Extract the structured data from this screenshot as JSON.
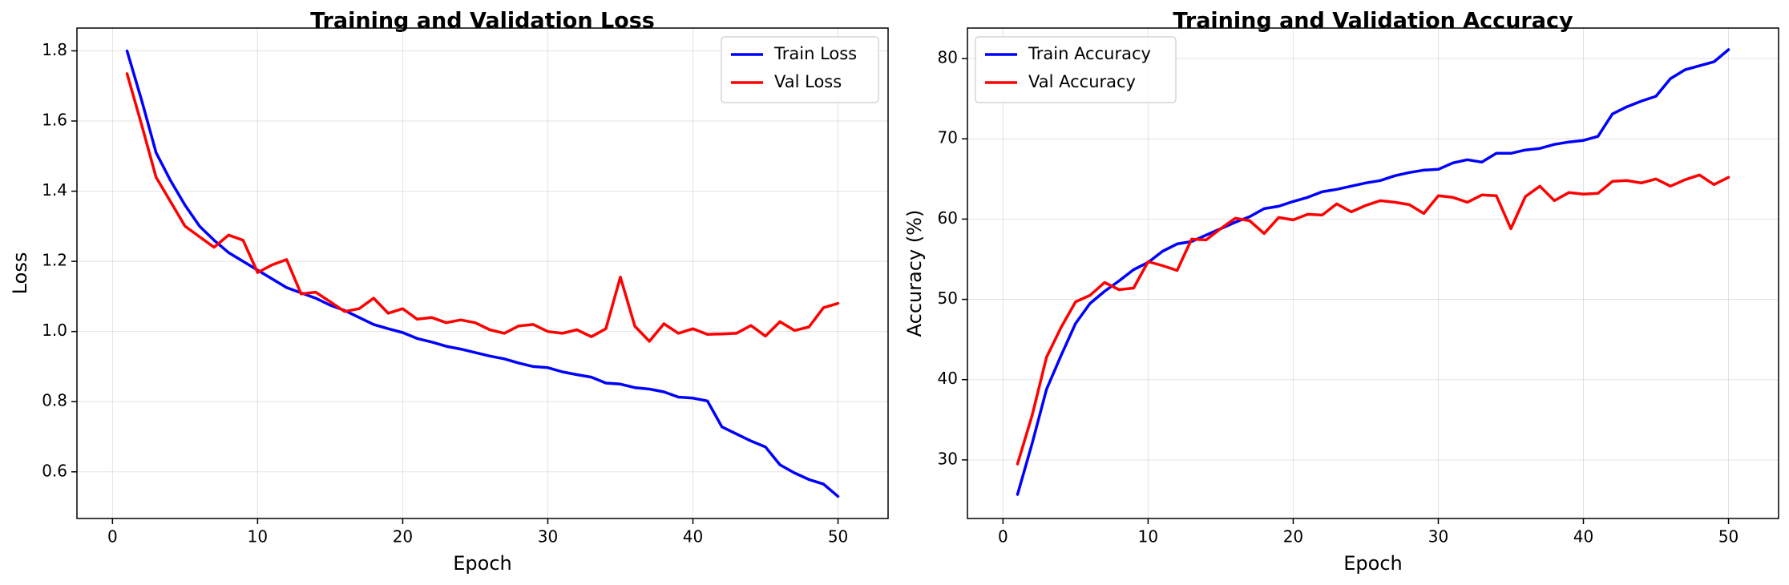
{
  "chart_data": [
    {
      "type": "line",
      "title": "Training and Validation Loss",
      "xlabel": "Epoch",
      "ylabel": "Loss",
      "xlim": [
        -2.45,
        53.45
      ],
      "ylim": [
        0.467,
        1.865
      ],
      "xticks": [
        0,
        10,
        20,
        30,
        40,
        50
      ],
      "yticks": [
        0.6,
        0.8,
        1.0,
        1.2,
        1.4,
        1.6,
        1.8
      ],
      "ytick_labels": [
        "0.6",
        "0.8",
        "1.0",
        "1.2",
        "1.4",
        "1.6",
        "1.8"
      ],
      "grid": true,
      "legend": "upper right",
      "x": [
        1,
        2,
        3,
        4,
        5,
        6,
        7,
        8,
        9,
        10,
        11,
        12,
        13,
        14,
        15,
        16,
        17,
        18,
        19,
        20,
        21,
        22,
        23,
        24,
        25,
        26,
        27,
        28,
        29,
        30,
        31,
        32,
        33,
        34,
        35,
        36,
        37,
        38,
        39,
        40,
        41,
        42,
        43,
        44,
        45,
        46,
        47,
        48,
        49,
        50
      ],
      "series": [
        {
          "name": "Train Loss",
          "color": "#0000ff",
          "values": [
            1.8,
            1.66,
            1.51,
            1.43,
            1.36,
            1.3,
            1.26,
            1.225,
            1.2,
            1.175,
            1.15,
            1.125,
            1.11,
            1.095,
            1.075,
            1.06,
            1.04,
            1.02,
            1.008,
            0.997,
            0.98,
            0.97,
            0.958,
            0.95,
            0.94,
            0.93,
            0.922,
            0.91,
            0.9,
            0.897,
            0.885,
            0.877,
            0.87,
            0.853,
            0.85,
            0.84,
            0.836,
            0.828,
            0.813,
            0.81,
            0.802,
            0.728,
            0.708,
            0.688,
            0.671,
            0.62,
            0.597,
            0.578,
            0.565,
            0.53
          ]
        },
        {
          "name": "Val Loss",
          "color": "#ff0000",
          "values": [
            1.735,
            1.59,
            1.44,
            1.37,
            1.3,
            1.27,
            1.24,
            1.275,
            1.26,
            1.168,
            1.19,
            1.205,
            1.107,
            1.112,
            1.085,
            1.057,
            1.065,
            1.095,
            1.052,
            1.065,
            1.035,
            1.04,
            1.025,
            1.033,
            1.025,
            1.005,
            0.995,
            1.016,
            1.02,
            1.0,
            0.995,
            1.005,
            0.985,
            1.008,
            1.155,
            1.015,
            0.972,
            1.022,
            0.995,
            1.008,
            0.992,
            0.993,
            0.995,
            1.017,
            0.987,
            1.028,
            1.003,
            1.013,
            1.068,
            1.08
          ]
        }
      ]
    },
    {
      "type": "line",
      "title": "Training and Validation Accuracy",
      "xlabel": "Epoch",
      "ylabel": "Accuracy (%)",
      "xlim": [
        -2.45,
        53.45
      ],
      "ylim": [
        22.7,
        83.8
      ],
      "xticks": [
        0,
        10,
        20,
        30,
        40,
        50
      ],
      "yticks": [
        30,
        40,
        50,
        60,
        70,
        80
      ],
      "ytick_labels": [
        "30",
        "40",
        "50",
        "60",
        "70",
        "80"
      ],
      "grid": true,
      "legend": "upper left",
      "x": [
        1,
        2,
        3,
        4,
        5,
        6,
        7,
        8,
        9,
        10,
        11,
        12,
        13,
        14,
        15,
        16,
        17,
        18,
        19,
        20,
        21,
        22,
        23,
        24,
        25,
        26,
        27,
        28,
        29,
        30,
        31,
        32,
        33,
        34,
        35,
        36,
        37,
        38,
        39,
        40,
        41,
        42,
        43,
        44,
        45,
        46,
        47,
        48,
        49,
        50
      ],
      "series": [
        {
          "name": "Train Accuracy",
          "color": "#0000ff",
          "values": [
            25.7,
            32.0,
            38.8,
            43.0,
            47.0,
            49.5,
            51.0,
            52.3,
            53.7,
            54.6,
            56.0,
            56.9,
            57.2,
            58.0,
            58.8,
            59.6,
            60.3,
            61.3,
            61.6,
            62.2,
            62.7,
            63.4,
            63.7,
            64.1,
            64.5,
            64.8,
            65.4,
            65.8,
            66.1,
            66.2,
            67.0,
            67.4,
            67.1,
            68.2,
            68.2,
            68.6,
            68.8,
            69.3,
            69.6,
            69.8,
            70.3,
            73.1,
            74.0,
            74.7,
            75.3,
            77.5,
            78.6,
            79.1,
            79.6,
            81.1
          ]
        },
        {
          "name": "Val Accuracy",
          "color": "#ff0000",
          "values": [
            29.5,
            35.5,
            42.8,
            46.5,
            49.7,
            50.5,
            52.1,
            51.2,
            51.4,
            54.7,
            54.2,
            53.6,
            57.5,
            57.4,
            58.8,
            60.1,
            59.8,
            58.2,
            60.2,
            59.9,
            60.6,
            60.5,
            61.9,
            60.9,
            61.7,
            62.3,
            62.1,
            61.8,
            60.7,
            62.9,
            62.7,
            62.1,
            63.0,
            62.9,
            58.8,
            62.8,
            64.1,
            62.3,
            63.3,
            63.1,
            63.2,
            64.7,
            64.8,
            64.5,
            65.0,
            64.1,
            64.9,
            65.5,
            64.3,
            65.2
          ]
        }
      ]
    }
  ]
}
